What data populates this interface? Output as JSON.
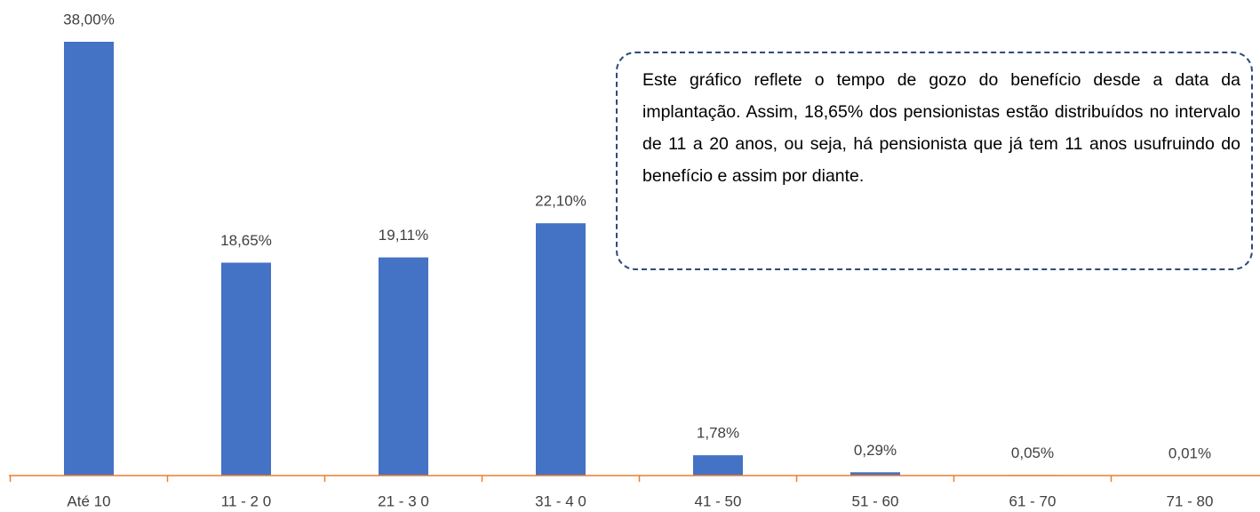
{
  "chart_data": {
    "type": "bar",
    "categories": [
      "Até 10",
      "11 - 2 0",
      "21 - 3 0",
      "31 - 4 0",
      "41 - 50",
      "51 - 60",
      "61 - 70",
      "71 - 80"
    ],
    "values": [
      38.0,
      18.65,
      19.11,
      22.1,
      1.78,
      0.29,
      0.05,
      0.01
    ],
    "value_labels": [
      "38,00%",
      "18,65%",
      "19,11%",
      "22,10%",
      "1,78%",
      "0,29%",
      "0,05%",
      "0,01%"
    ],
    "color": "#4472c4",
    "axis_color": "#ed7d31",
    "annotation": "Este gráfico reflete o tempo de gozo do benefício desde a data da implantação. Assim, 18,65% dos pensionistas estão distribuídos no intervalo de 11 a 20 anos, ou seja, há pensionista que já tem 11 anos usufruindo do benefício e assim por diante."
  }
}
